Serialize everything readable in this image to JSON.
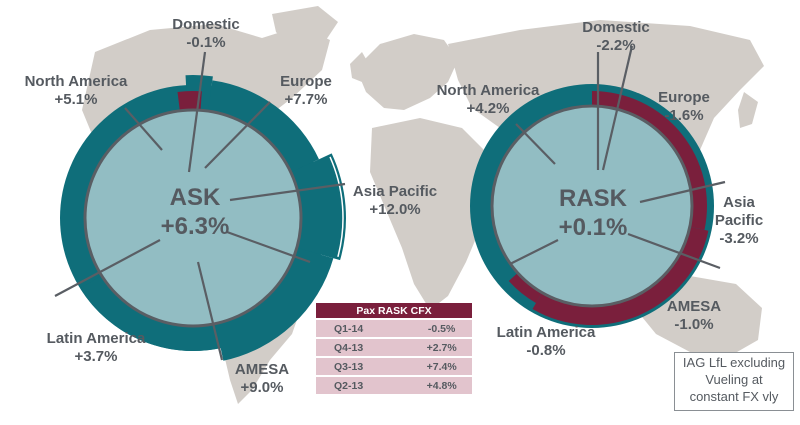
{
  "colors": {
    "teal": "#0f6e7a",
    "maroon": "#7a1f3c",
    "map": "#d2cdc8",
    "text": "#555a60",
    "table_cell": "#e2c4cd",
    "ring_edge": "#5a5e64"
  },
  "chart_data": [
    {
      "type": "pie",
      "title": "ASK",
      "total": "+6.3%",
      "slices": [
        {
          "label": "Domestic",
          "value": "-0.1%"
        },
        {
          "label": "Europe",
          "value": "+7.7%"
        },
        {
          "label": "Asia Pacific",
          "value": "+12.0%"
        },
        {
          "label": "AMESA",
          "value": "+9.0%"
        },
        {
          "label": "Latin America",
          "value": "+3.7%"
        },
        {
          "label": "North America",
          "value": "+5.1%"
        }
      ]
    },
    {
      "type": "pie",
      "title": "RASK",
      "total": "+0.1%",
      "slices": [
        {
          "label": "Domestic",
          "value": "-2.2%"
        },
        {
          "label": "Europe",
          "value": "-1.6%"
        },
        {
          "label": "Asia Pacific",
          "value": "-3.2%"
        },
        {
          "label": "AMESA",
          "value": "-1.0%"
        },
        {
          "label": "Latin America",
          "value": "-0.8%"
        },
        {
          "label": "North America",
          "value": "+4.2%"
        }
      ]
    },
    {
      "type": "table",
      "title": "Pax RASK CFX",
      "rows": [
        {
          "period": "Q1-14",
          "value": "-0.5%"
        },
        {
          "period": "Q4-13",
          "value": "+2.7%"
        },
        {
          "period": "Q3-13",
          "value": "+7.4%"
        },
        {
          "period": "Q2-13",
          "value": "+4.8%"
        }
      ]
    }
  ],
  "note": [
    "IAG LfL excluding",
    "Vueling at",
    "constant FX vly"
  ]
}
